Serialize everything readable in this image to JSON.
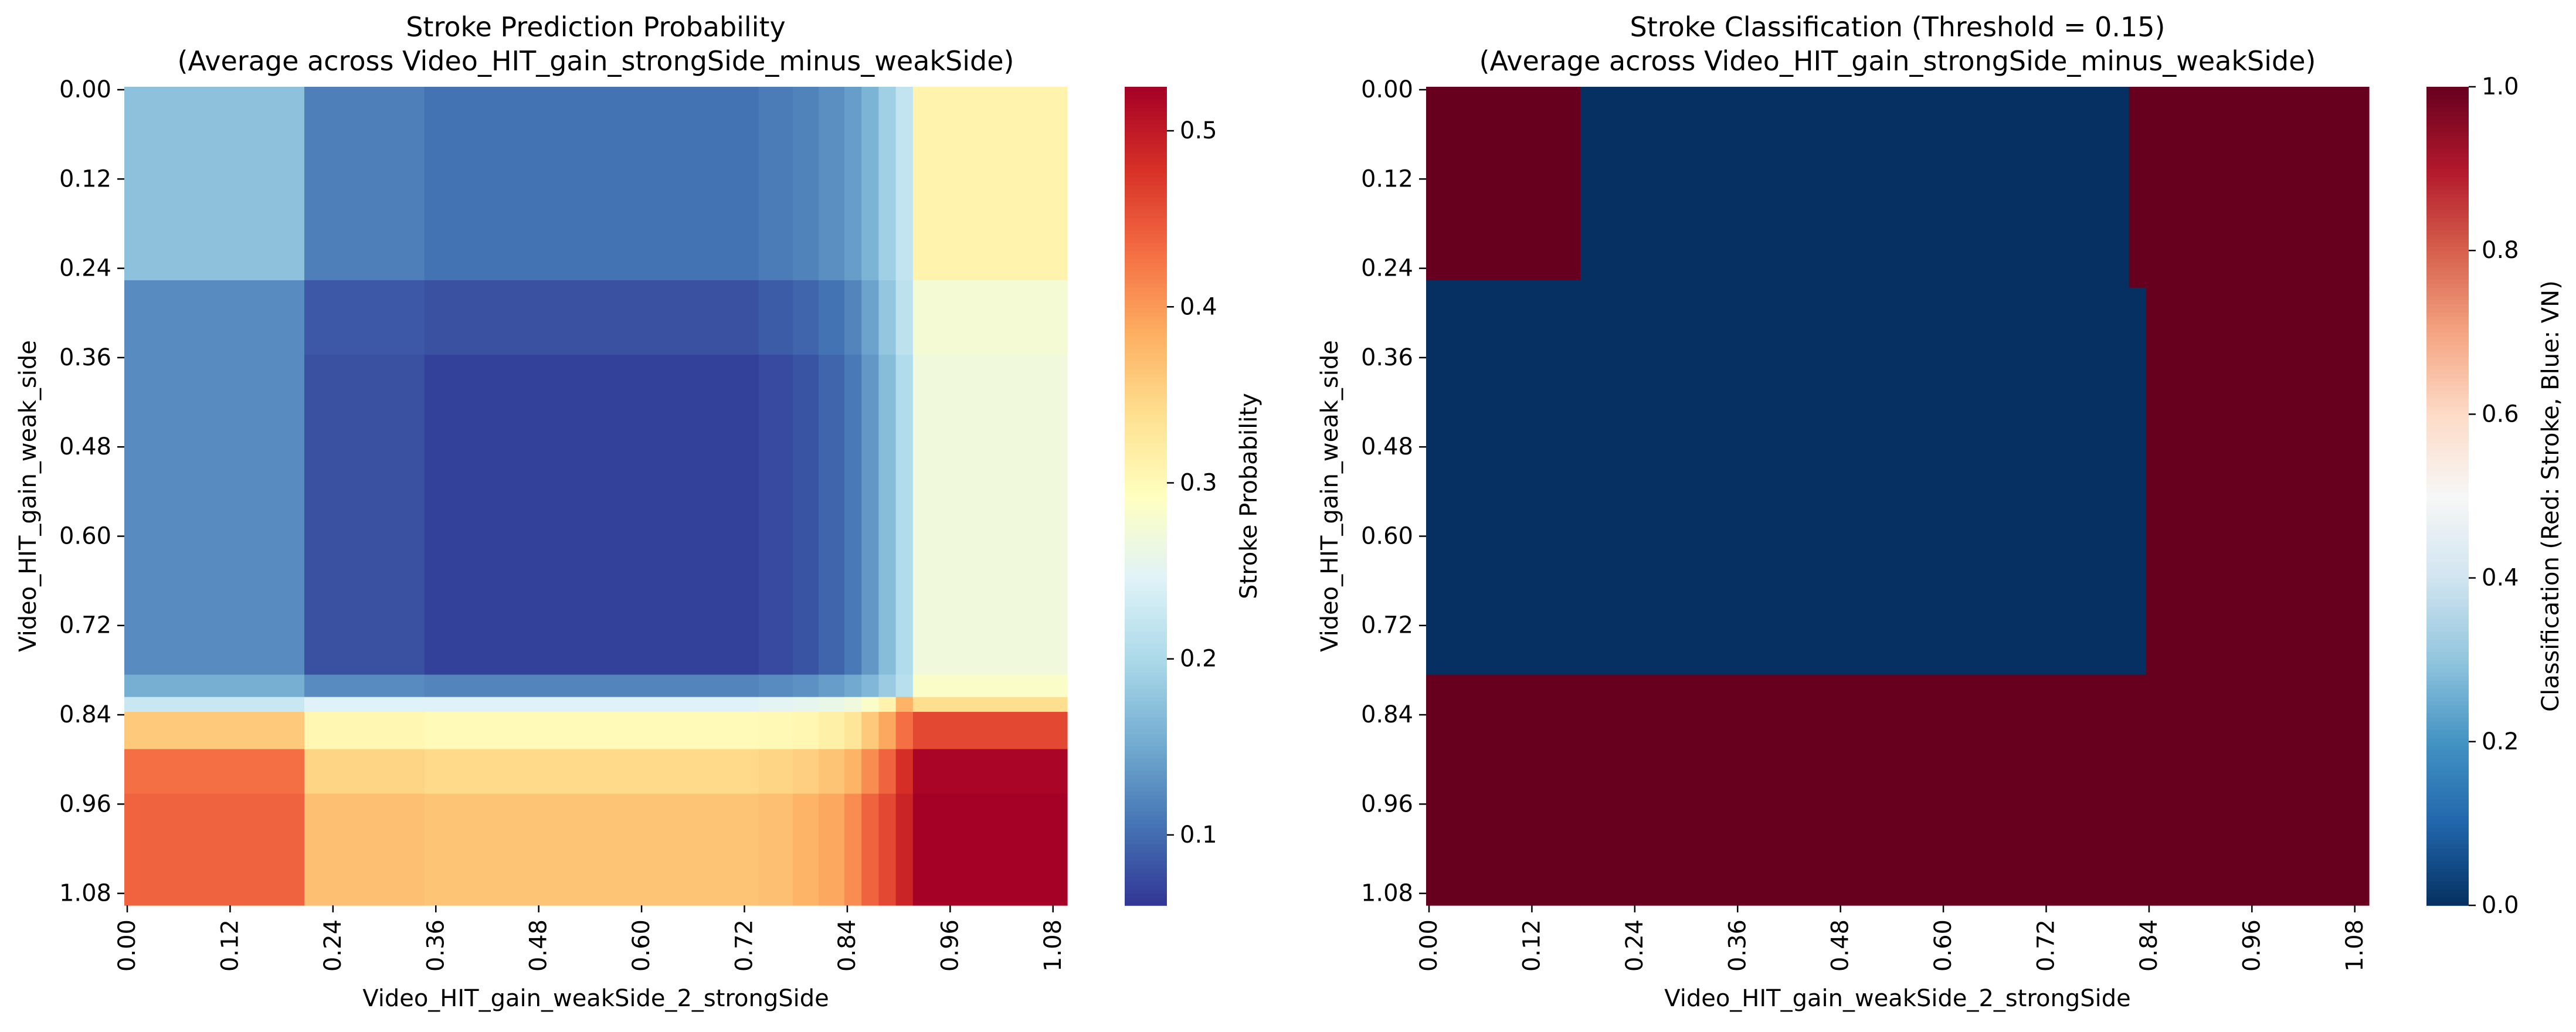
{
  "chart_data": [
    {
      "type": "heatmap",
      "title_line1": "Stroke Prediction Probability",
      "title_line2": "(Average across Video_HIT_gain_strongSide_minus_weakSide)",
      "xlabel": "Video_HIT_gain_weakSide_2_strongSide",
      "ylabel": "Video_HIT_gain_weak_side",
      "xtick_labels": [
        "0.00",
        "0.12",
        "0.24",
        "0.36",
        "0.48",
        "0.60",
        "0.72",
        "0.84",
        "0.96",
        "1.08"
      ],
      "ytick_labels": [
        "0.00",
        "0.12",
        "0.24",
        "0.36",
        "0.48",
        "0.60",
        "0.72",
        "0.84",
        "0.96",
        "1.08"
      ],
      "xlim": [
        0,
        1.1
      ],
      "ylim": [
        0,
        1.1
      ],
      "colormap": "RdYlBu_r",
      "colorbar": {
        "label": "Stroke Probability",
        "min": 0.06,
        "max": 0.525,
        "tick_values": [
          0.1,
          0.2,
          0.3,
          0.4,
          0.5
        ],
        "tick_labels": [
          "0.1",
          "0.2",
          "0.3",
          "0.4",
          "0.5"
        ]
      },
      "x_edges": [
        0,
        0.21,
        0.35,
        0.74,
        0.78,
        0.81,
        0.84,
        0.86,
        0.88,
        0.9,
        0.92,
        1.1
      ],
      "y_edges": [
        0,
        0.26,
        0.36,
        0.79,
        0.82,
        0.84,
        0.89,
        0.95,
        1.1
      ],
      "values": [
        [
          0.175,
          0.115,
          0.105,
          0.112,
          0.118,
          0.128,
          0.14,
          0.16,
          0.19,
          0.22,
          0.31
        ],
        [
          0.125,
          0.085,
          0.08,
          0.088,
          0.095,
          0.105,
          0.12,
          0.145,
          0.18,
          0.215,
          0.275
        ],
        [
          0.125,
          0.08,
          0.068,
          0.075,
          0.082,
          0.095,
          0.11,
          0.135,
          0.17,
          0.205,
          0.27
        ],
        [
          0.155,
          0.125,
          0.12,
          0.125,
          0.13,
          0.14,
          0.15,
          0.165,
          0.185,
          0.21,
          0.285
        ],
        [
          0.225,
          0.245,
          0.245,
          0.25,
          0.255,
          0.26,
          0.27,
          0.285,
          0.31,
          0.38,
          0.34
        ],
        [
          0.36,
          0.305,
          0.3,
          0.302,
          0.305,
          0.315,
          0.33,
          0.36,
          0.39,
          0.43,
          0.46
        ],
        [
          0.43,
          0.35,
          0.345,
          0.35,
          0.355,
          0.365,
          0.38,
          0.41,
          0.44,
          0.48,
          0.52
        ],
        [
          0.44,
          0.37,
          0.365,
          0.37,
          0.38,
          0.39,
          0.41,
          0.44,
          0.46,
          0.49,
          0.525
        ]
      ]
    },
    {
      "type": "heatmap",
      "title_line1": "Stroke Classification (Threshold = 0.15)",
      "title_line2": "(Average across Video_HIT_gain_strongSide_minus_weakSide)",
      "xlabel": "Video_HIT_gain_weakSide_2_strongSide",
      "ylabel": "Video_HIT_gain_weak_side",
      "xtick_labels": [
        "0.00",
        "0.12",
        "0.24",
        "0.36",
        "0.48",
        "0.60",
        "0.72",
        "0.84",
        "0.96",
        "1.08"
      ],
      "ytick_labels": [
        "0.00",
        "0.12",
        "0.24",
        "0.36",
        "0.48",
        "0.60",
        "0.72",
        "0.84",
        "0.96",
        "1.08"
      ],
      "xlim": [
        0,
        1.1
      ],
      "ylim": [
        0,
        1.1
      ],
      "colormap": "RdBu_r",
      "colorbar": {
        "label": "Classification (Red: Stroke, Blue: VN)",
        "min": 0,
        "max": 1,
        "tick_values": [
          0,
          0.2,
          0.4,
          0.6,
          0.8,
          1.0
        ],
        "tick_labels": [
          "0.0",
          "0.2",
          "0.4",
          "0.6",
          "0.8",
          "1.0"
        ]
      },
      "x_edges": [
        0,
        0.18,
        0.8,
        0.82,
        0.84,
        1.1
      ],
      "y_edges": [
        0,
        0.26,
        0.27,
        0.28,
        0.79,
        1.1
      ],
      "values": [
        [
          1,
          0,
          0,
          1,
          1
        ],
        [
          0,
          0,
          0,
          1,
          1
        ],
        [
          0,
          0,
          0,
          0,
          1
        ],
        [
          0,
          0,
          0,
          0,
          1
        ],
        [
          1,
          1,
          1,
          1,
          1
        ]
      ]
    }
  ]
}
